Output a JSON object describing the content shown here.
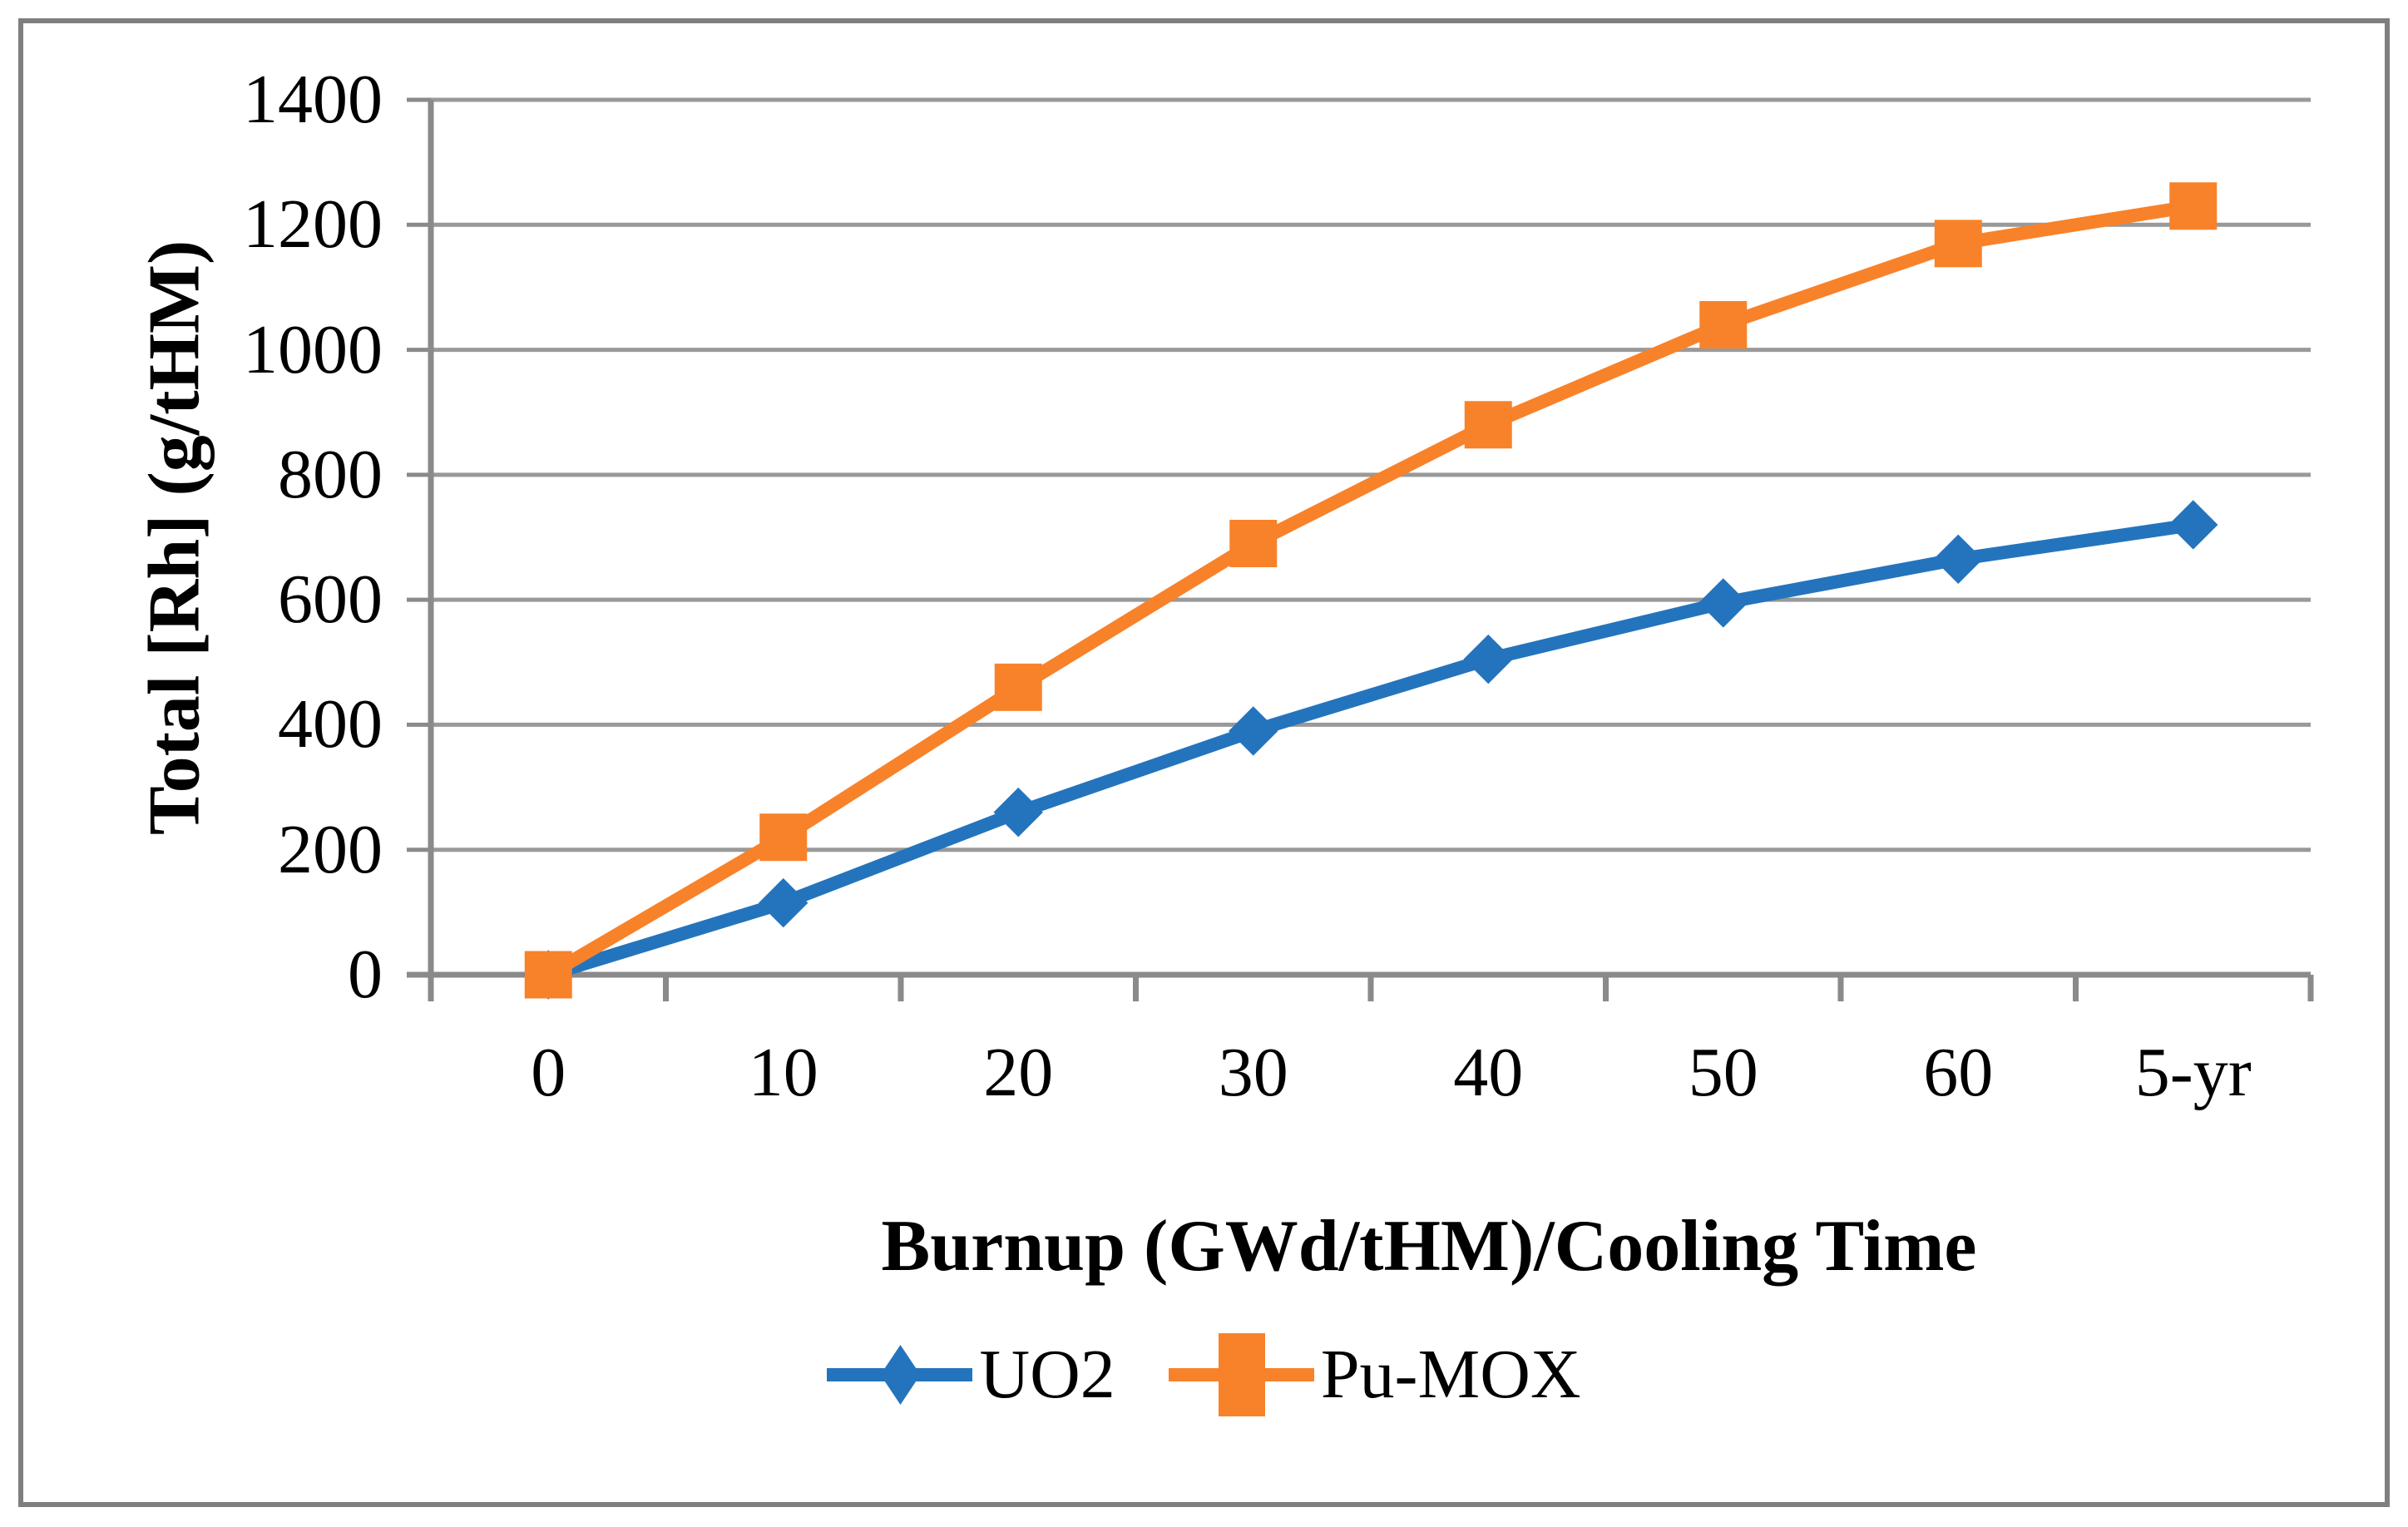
{
  "chart_data": {
    "type": "line",
    "categories": [
      "0",
      "10",
      "20",
      "30",
      "40",
      "50",
      "60",
      "5-yr"
    ],
    "series": [
      {
        "name": "UO2",
        "color": "#2474BD",
        "marker": "diamond",
        "values": [
          0,
          115,
          260,
          390,
          505,
          595,
          665,
          720
        ]
      },
      {
        "name": "Pu-MOX",
        "color": "#F8822A",
        "marker": "square",
        "values": [
          0,
          220,
          460,
          690,
          880,
          1040,
          1170,
          1230
        ]
      }
    ],
    "xlabel": "Burnup (GWd/tHM)/Cooling Time",
    "ylabel": "Total [Rh] (g/tHM)",
    "ylim": [
      0,
      1400
    ],
    "y_ticks": [
      "0",
      "200",
      "400",
      "600",
      "800",
      "1000",
      "1200",
      "1400"
    ],
    "grid": "horizontal",
    "legend_position": "bottom-center",
    "gridline_color": "#999999",
    "axis_color": "#8a8a8a",
    "frame_color": "#7f7f7f",
    "text_color": "#000000"
  }
}
